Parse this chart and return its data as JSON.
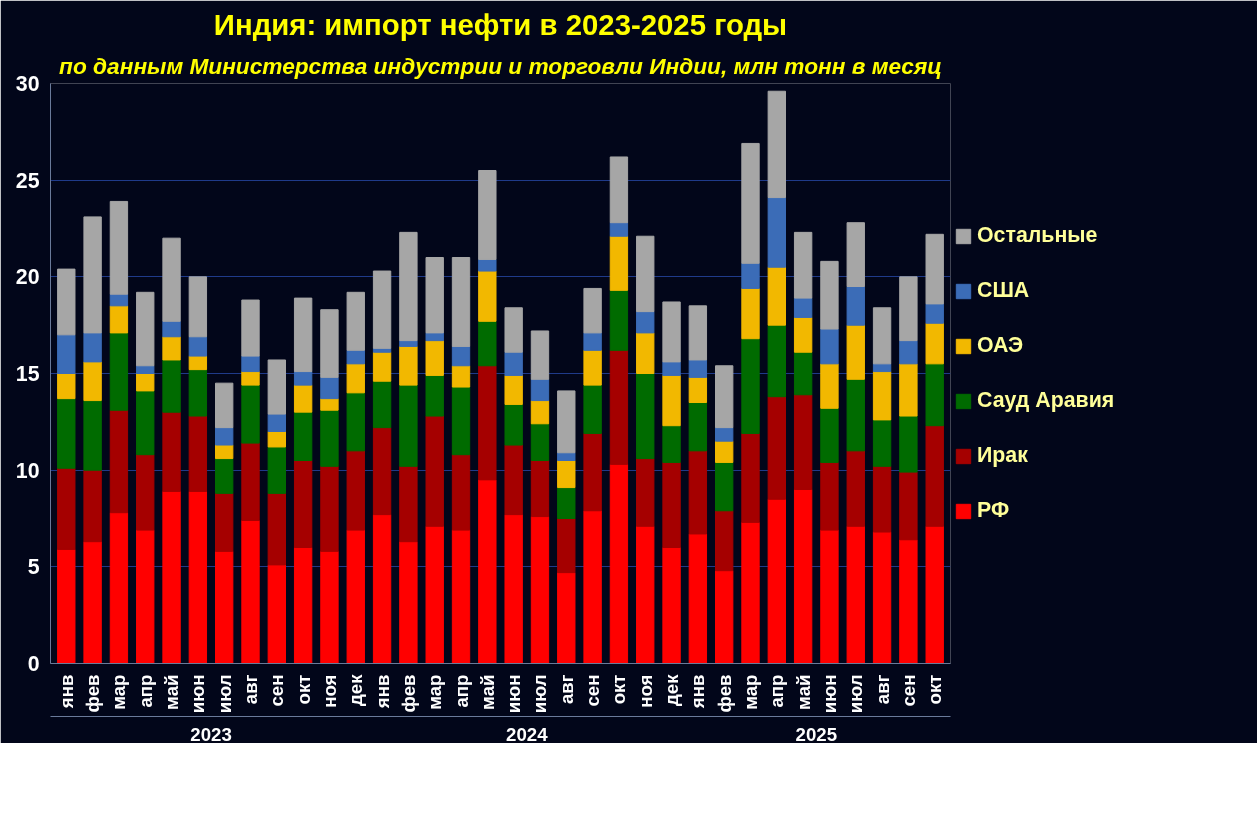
{
  "chart_data": {
    "type": "bar",
    "stacked": true,
    "title": "Индия: импорт нефти в 2023-2025 годы",
    "subtitle": "по данным Министерства индустрии и торговли Индии, млн тонн в месяц",
    "categories": [
      "янв",
      "фев",
      "мар",
      "апр",
      "май",
      "июн",
      "июл",
      "авг",
      "сен",
      "окт",
      "ноя",
      "дек",
      "янв",
      "фев",
      "мар",
      "апр",
      "май",
      "июн",
      "июл",
      "авг",
      "сен",
      "окт",
      "ноя",
      "дек",
      "янв",
      "фев",
      "мар",
      "апр",
      "май",
      "июн",
      "июл",
      "авг",
      "сен",
      "окт"
    ],
    "annotations": [
      "2023",
      "2024",
      "2025"
    ],
    "series": [
      {
        "name": "РФ",
        "color": "#ff0000",
        "values": [
          5.9,
          6.3,
          7.8,
          6.9,
          8.9,
          8.9,
          5.8,
          7.4,
          5.1,
          6.0,
          5.8,
          6.9,
          7.7,
          6.3,
          7.1,
          6.9,
          9.5,
          7.7,
          7.6,
          4.7,
          7.9,
          10.3,
          7.1,
          6.0,
          6.7,
          4.8,
          7.3,
          8.5,
          9.0,
          6.9,
          7.1,
          6.8,
          6.4,
          7.1
        ]
      },
      {
        "name": "Ирак",
        "color": "#a50000",
        "values": [
          4.2,
          3.7,
          5.3,
          3.9,
          4.1,
          3.9,
          3.0,
          4.0,
          3.7,
          4.5,
          4.4,
          4.1,
          4.5,
          3.9,
          5.7,
          3.9,
          5.9,
          3.6,
          2.9,
          2.8,
          4.0,
          5.9,
          3.5,
          4.4,
          4.3,
          3.1,
          4.6,
          5.3,
          4.9,
          3.5,
          3.9,
          3.4,
          3.5,
          5.2
        ]
      },
      {
        "name": "Сауд Аравия",
        "color": "#006b00",
        "values": [
          3.6,
          3.6,
          4.0,
          3.3,
          2.7,
          2.4,
          1.8,
          3.0,
          2.4,
          2.5,
          2.9,
          3.0,
          2.4,
          4.2,
          2.1,
          3.5,
          2.3,
          2.1,
          1.9,
          1.6,
          2.5,
          3.1,
          4.4,
          1.9,
          2.5,
          2.5,
          4.9,
          3.7,
          2.2,
          2.8,
          3.7,
          2.4,
          2.9,
          3.2
        ]
      },
      {
        "name": "ОАЭ",
        "color": "#f2b800",
        "values": [
          1.3,
          2.0,
          1.4,
          0.9,
          1.2,
          0.7,
          0.7,
          0.7,
          0.8,
          1.4,
          0.6,
          1.5,
          1.5,
          2.0,
          1.8,
          1.1,
          2.6,
          1.5,
          1.2,
          1.4,
          1.8,
          2.8,
          2.1,
          2.6,
          1.3,
          1.1,
          2.6,
          3.0,
          1.8,
          2.3,
          2.8,
          2.5,
          2.7,
          2.1
        ]
      },
      {
        "name": "США",
        "color": "#3b6cb7",
        "values": [
          2.0,
          1.5,
          0.6,
          0.4,
          0.8,
          1.0,
          0.9,
          0.8,
          0.9,
          0.7,
          1.1,
          0.7,
          0.2,
          0.3,
          0.4,
          1.0,
          0.6,
          1.2,
          1.1,
          0.4,
          0.9,
          0.7,
          1.1,
          0.7,
          0.9,
          0.7,
          1.3,
          3.6,
          1.0,
          1.8,
          2.0,
          0.4,
          1.2,
          1.0
        ]
      },
      {
        "name": "Остальные",
        "color": "#a6a6a6",
        "values": [
          3.4,
          6.0,
          4.8,
          3.8,
          4.3,
          3.1,
          2.3,
          2.9,
          2.8,
          3.8,
          3.5,
          3.0,
          4.0,
          5.6,
          3.9,
          4.6,
          4.6,
          2.3,
          2.5,
          3.2,
          2.3,
          3.4,
          3.9,
          3.1,
          2.8,
          3.2,
          6.2,
          5.5,
          3.4,
          3.5,
          3.3,
          2.9,
          3.3,
          3.6
        ]
      }
    ],
    "ylim": [
      0,
      30
    ],
    "yticks": [
      0,
      5,
      10,
      15,
      20,
      25,
      30
    ],
    "grid": "y",
    "legend": "right"
  }
}
